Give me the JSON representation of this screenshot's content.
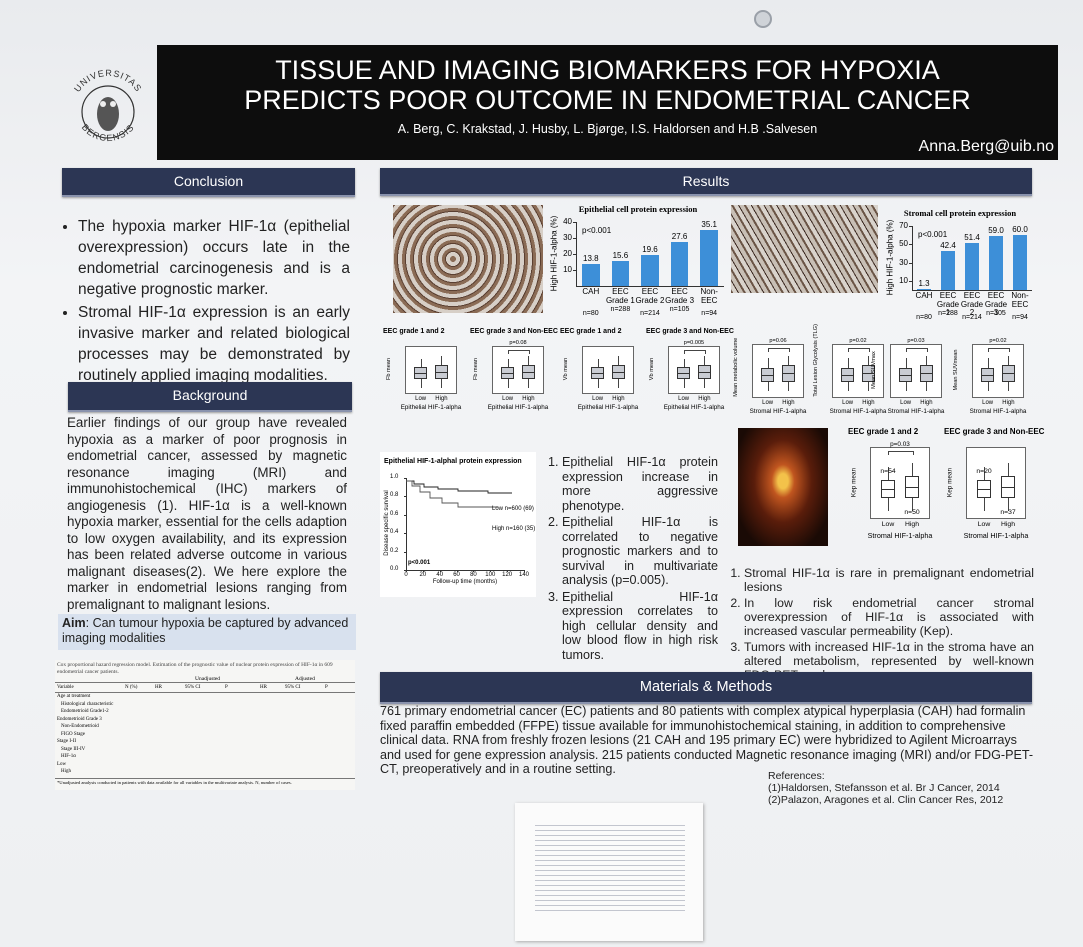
{
  "header": {
    "title_line1": "TISSUE AND IMAGING BIOMARKERS FOR HYPOXIA",
    "title_line2": "PREDICTS POOR OUTCOME IN ENDOMETRIAL CANCER",
    "authors": "A. Berg, C. Krakstad, J. Husby, L. Bjørge, I.S. Haldorsen and H.B .Salvesen",
    "email": "Anna.Berg@uib.no",
    "logo_top": "UNIVERSITAS",
    "logo_bottom": "BERGENSIS"
  },
  "conclusion": {
    "heading": "Conclusion",
    "bullets": [
      "The hypoxia marker HIF-1α (epithelial overexpression) occurs late in the endometrial carcinogenesis and is a negative prognostic marker.",
      "Stromal HIF-1α expression is an early invasive marker and related biological processes may be demonstrated by routinely applied imaging modalities."
    ]
  },
  "background": {
    "heading": "Background",
    "text": "Earlier findings of our group have revealed hypoxia as a marker of poor prognosis in endometrial cancer, assessed by magnetic resonance imaging (MRI) and immunohistochemical (IHC) markers of angiogenesis (1). HIF-1α is a well-known hypoxia marker, essential for the cells adaption to low oxygen availability, and its expression has been related adverse outcome in various malignant diseases(2). We here explore the marker in endometrial lesions ranging from premalignant to malignant lesions.",
    "aim_label": "Aim",
    "aim_text": ": Can tumour hypoxia be captured by advanced imaging modalities"
  },
  "table": {
    "caption": "Cox proportional hazard regression model. Estimation of the prognostic value of nuclear protein expression of HIF-1α in 609 endometrial cancer patients.",
    "group_headers": [
      "Unadjusted",
      "Adjusted"
    ],
    "columns": [
      "Variable",
      "N (%)",
      "HR",
      "95% CI",
      "P",
      "HR",
      "95% CI",
      "P"
    ],
    "row_labels": [
      "Age at treatment",
      "Histological characteristic",
      "Endometrioid Grade1-2",
      "Endometrioid Grade 3",
      "Non-Endometrioid",
      "FIGO Stage",
      "Stage I-II",
      "Stage III-IV",
      "HIF-1α",
      "Low",
      "High"
    ],
    "footnote": "*Unadjusted analysis conducted in patients with data available for all variables in the multivariate analysis. N, number of cases."
  },
  "results": {
    "heading": "Results",
    "epithelial_chart": {
      "title": "Epithelial cell protein expression",
      "ylabel": "High HIF-1-alpha (%)",
      "pvalue": "p<0.001",
      "categories": [
        "CAH",
        "EEC Grade 1",
        "EEC Grade 2",
        "EEC Grade 3",
        "Non-EEC"
      ],
      "n": [
        "n=80",
        "n=288",
        "n=214",
        "n=105",
        "n=94"
      ],
      "values": [
        13.8,
        15.6,
        19.6,
        27.6,
        35.1
      ],
      "ylim": [
        0,
        40
      ],
      "yticks": [
        10,
        20,
        30,
        40
      ],
      "color": "#3d8fd8"
    },
    "stromal_chart": {
      "title": "Stromal cell protein expression",
      "ylabel": "High HIF-1-alpha (%)",
      "pvalue": "p<0.001",
      "categories": [
        "CAH",
        "EEC Grade 1",
        "EEC Grade 2",
        "EEC Grade 3",
        "Non-EEC"
      ],
      "n": [
        "n=80",
        "n=288",
        "n=214",
        "n=105",
        "n=94"
      ],
      "values": [
        1.3,
        42.4,
        51.4,
        59.0,
        60.0
      ],
      "value_labels": [
        "1.3",
        "42.4",
        "51.4",
        "59.0",
        "60.0"
      ],
      "ylim": [
        0,
        70
      ],
      "yticks": [
        10,
        30,
        50,
        70
      ],
      "color": "#3d8fd8"
    },
    "box_panels": [
      {
        "title": "EEC grade 1 and 2",
        "ylabel": "Fb mean",
        "xlabels": [
          "Low",
          "High"
        ],
        "xlabel": "Epithelial HIF-1-alpha"
      },
      {
        "title": "EEC grade 3 and Non-EEC",
        "ylabel": "Fb mean",
        "pvalue": "p=0.08",
        "xlabels": [
          "Low",
          "High"
        ],
        "xlabel": "Epithelial HIF-1-alpha"
      },
      {
        "title": "EEC grade 1 and 2",
        "ylabel": "Vb mean",
        "xlabels": [
          "Low",
          "High"
        ],
        "xlabel": "Epithelial HIF-1-alpha"
      },
      {
        "title": "EEC grade 3 and Non-EEC",
        "ylabel": "Vb mean",
        "pvalue": "p=0.005",
        "xlabels": [
          "Low",
          "High"
        ],
        "xlabel": "Epithelial HIF-1-alpha"
      },
      {
        "ylabel": "Mean metabolic volume",
        "pvalue": "p=0.06",
        "xlabels": [
          "Low",
          "High"
        ],
        "xlabel": "Stromal HIF-1-alpha"
      },
      {
        "ylabel": "Total Lesion Glycolysis (TLG)",
        "pvalue": "p=0.02",
        "xlabels": [
          "Low",
          "High"
        ],
        "xlabel": "Stromal HIF-1-alpha"
      },
      {
        "ylabel": "Mean SUVmax",
        "pvalue": "p=0.03",
        "xlabels": [
          "Low",
          "High"
        ],
        "xlabel": "Stromal HIF-1-alpha"
      },
      {
        "ylabel": "Mean SUVmean",
        "pvalue": "p=0.02",
        "xlabels": [
          "Low",
          "High"
        ],
        "xlabel": "Stromal HIF-1-alpha"
      }
    ],
    "kep_panels": [
      {
        "title": "EEC grade 1 and 2",
        "ylabel": "Kep mean",
        "pvalue": "p=0.03",
        "n": [
          "n=54",
          "n=50"
        ],
        "xlabels": [
          "Low",
          "High"
        ],
        "xlabel": "Stromal HIF-1-alpha"
      },
      {
        "title": "EEC grade 3 and Non-EEC",
        "ylabel": "Kep mean",
        "n": [
          "n=20",
          "n=37"
        ],
        "xlabels": [
          "Low",
          "High"
        ],
        "xlabel": "Stromal HIF-1-alpha"
      }
    ],
    "survival": {
      "title": "Epithelial HIF-1-alphal protein expression",
      "ylabel": "Disease specific survival",
      "xlabel": "Follow-up time (months)",
      "pvalue": "p<0.001",
      "low": "Low n=600 (69)",
      "high": "High n=160 (35)",
      "xlim": [
        0,
        140
      ],
      "xticks": [
        0,
        20,
        40,
        60,
        80,
        100,
        120,
        140
      ],
      "ylim": [
        0,
        1
      ],
      "yticks": [
        {
          "value": 0,
          "label": "0.0"
        },
        {
          "value": 0.2,
          "label": "0.2"
        },
        {
          "value": 0.4,
          "label": "0.4"
        },
        {
          "value": 0.6,
          "label": "0.6"
        },
        {
          "value": 0.8,
          "label": "0.8"
        },
        {
          "value": 1,
          "label": "1.0"
        }
      ]
    },
    "epithelial_findings": [
      "Epithelial HIF-1α protein expression increase in more aggressive phenotype.",
      "Epithelial HIF-1α is correlated to negative prognostic markers and to survival in multivariate analysis (p=0.005).",
      "Epithelial HIF-1α expression correlates to high cellular density and low blood flow in high risk tumors."
    ],
    "stromal_findings": [
      "Stromal HIF-1α is rare in premalignant endometrial lesions",
      "In low risk endometrial cancer stromal overexpression of HIF-1α is associated with increased vascular permeability (Kep).",
      "Tumors with increased HIF-1α in the stroma have an altered metabolism, represented by well-known FDG-PET markers."
    ]
  },
  "methods": {
    "heading": "Materials & Methods",
    "text": "761 primary endometrial cancer (EC) patients and 80 patients with complex atypical hyperplasia (CAH) had formalin fixed paraffin embedded (FFPE) tissue available for immunohistochemical staining, in addition to comprehensive clinical data. RNA from freshly frozen lesions (21 CAH and 195 primary EC) were hybridized to Agilent Microarrays and used for gene expression analysis. 215 patients conducted Magnetic resonance imaging (MRI) and/or FDG-PET-CT, preoperatively and in a routine setting.",
    "references_label": "References:",
    "references": [
      "(1)Haldorsen, Stefansson et al. Br J Cancer, 2014",
      "(2)Palazon, Aragones et al. Clin Cancer Res, 2012"
    ]
  }
}
